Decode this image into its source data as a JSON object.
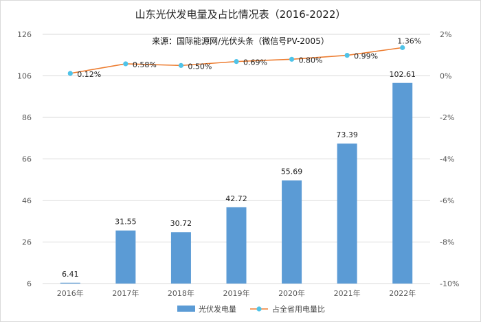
{
  "chart_data": {
    "type": "bar",
    "title": "山东光伏发电量及占比情况表（2016-2022）",
    "subtitle": "来源：国际能源网/光伏头条（微信号PV-2005）",
    "categories": [
      "2016年",
      "2017年",
      "2018年",
      "2019年",
      "2020年",
      "2021年",
      "2022年"
    ],
    "series": [
      {
        "name": "光伏发电量",
        "type": "bar",
        "axis": "left",
        "values": [
          6.41,
          31.55,
          30.72,
          42.72,
          55.69,
          73.39,
          102.61
        ],
        "labels": [
          "6.41",
          "31.55",
          "30.72",
          "42.72",
          "55.69",
          "73.39",
          "102.61"
        ],
        "color": "#5b9bd5"
      },
      {
        "name": "占全省用电量比",
        "type": "line",
        "axis": "right",
        "values": [
          0.12,
          0.58,
          0.5,
          0.69,
          0.8,
          0.99,
          1.36
        ],
        "labels": [
          "0.12%",
          "0.58%",
          "0.50%",
          "0.69%",
          "0.80%",
          "0.99%",
          "1.36%"
        ],
        "line_color": "#ed7d31",
        "marker_color": "#4fc3e8"
      }
    ],
    "y_left": {
      "min": 6,
      "max": 126,
      "ticks": [
        "6",
        "26",
        "46",
        "66",
        "86",
        "106",
        "126"
      ],
      "tick_values": [
        6,
        26,
        46,
        66,
        86,
        106,
        126
      ]
    },
    "y_right": {
      "min": -10,
      "max": 2,
      "ticks": [
        "-10%",
        "-8%",
        "-6%",
        "-4%",
        "-2%",
        "0%",
        "2%"
      ],
      "tick_values": [
        -10,
        -8,
        -6,
        -4,
        -2,
        0,
        2
      ]
    },
    "grid": true,
    "legend_position": "bottom"
  }
}
